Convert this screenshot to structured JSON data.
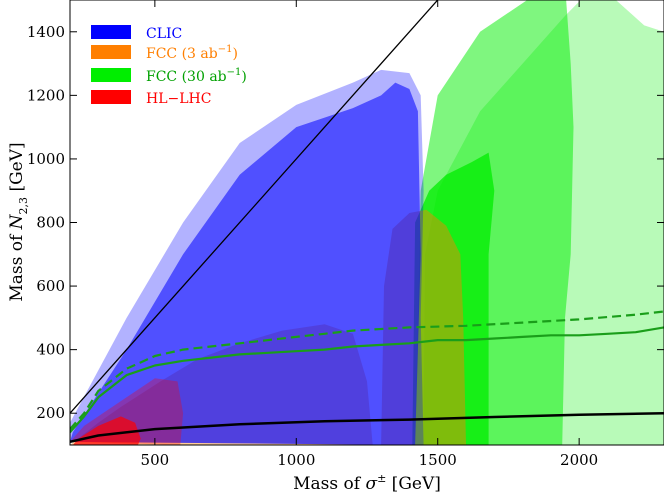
{
  "chart_data": {
    "type": "area",
    "xlabel": {
      "prefix": "Mass of ",
      "symbol": "σ",
      "sup": "±",
      "suffix": " [GeV]"
    },
    "ylabel": {
      "prefix": "Mass of ",
      "symbol": "N",
      "sub": "2,3",
      "suffix": " [GeV]"
    },
    "xlim": [
      200,
      2300
    ],
    "ylim": [
      100,
      1500
    ],
    "xticks": [
      500,
      1000,
      1500,
      2000
    ],
    "yticks": [
      200,
      400,
      600,
      800,
      1000,
      1200,
      1400
    ],
    "grid": false,
    "legend_position": "top-left",
    "legend": [
      {
        "label": "CLIC",
        "color": "#0000ff",
        "text_color": "#0000ff"
      },
      {
        "label": "FCC (3 ab",
        "sup": "−1",
        "close": ")",
        "color": "#ff7f00",
        "text_color": "#ff7f00"
      },
      {
        "label": "FCC (30 ab",
        "sup": "−1",
        "close": ")",
        "color": "#00ee00",
        "text_color": "#00a000"
      },
      {
        "label": "HL−LHC",
        "color": "#ff0000",
        "text_color": "#ff0000"
      }
    ],
    "regions": [
      {
        "name": "FCC (30 ab⁻¹)",
        "level": "outer",
        "color": "#00ee00",
        "opacity": 0.28,
        "points": [
          [
            1450,
            100
          ],
          [
            1455,
            700
          ],
          [
            1500,
            900
          ],
          [
            1650,
            1150
          ],
          [
            1800,
            1300
          ],
          [
            1950,
            1450
          ],
          [
            2050,
            1540
          ],
          [
            2130,
            1500
          ],
          [
            2230,
            1420
          ],
          [
            2300,
            1400
          ],
          [
            2300,
            100
          ]
        ]
      },
      {
        "name": "FCC (30 ab⁻¹)",
        "level": "inner",
        "color": "#00ee00",
        "opacity": 0.5,
        "points": [
          [
            1420,
            100
          ],
          [
            1440,
            900
          ],
          [
            1500,
            1200
          ],
          [
            1650,
            1400
          ],
          [
            1850,
            1520
          ],
          [
            1950,
            1550
          ],
          [
            1970,
            1300
          ],
          [
            1980,
            1100
          ],
          [
            1970,
            700
          ],
          [
            1950,
            500
          ],
          [
            1940,
            100
          ]
        ]
      },
      {
        "name": "FCC (30 ab⁻¹)",
        "level": "core",
        "color": "#00ee00",
        "opacity": 0.75,
        "points": [
          [
            1410,
            100
          ],
          [
            1420,
            800
          ],
          [
            1470,
            900
          ],
          [
            1530,
            950
          ],
          [
            1620,
            990
          ],
          [
            1680,
            1020
          ],
          [
            1700,
            900
          ],
          [
            1680,
            700
          ],
          [
            1680,
            100
          ]
        ]
      },
      {
        "name": "FCC (3 ab⁻¹)",
        "level": "outer",
        "color": "#ff7f00",
        "opacity": 0.4,
        "points": [
          [
            200,
            100
          ],
          [
            300,
            170
          ],
          [
            380,
            220
          ],
          [
            520,
            300
          ],
          [
            650,
            370
          ],
          [
            800,
            420
          ],
          [
            950,
            460
          ],
          [
            1100,
            480
          ],
          [
            1200,
            450
          ],
          [
            1250,
            300
          ],
          [
            1270,
            100
          ]
        ]
      },
      {
        "name": "FCC (3 ab⁻¹)",
        "level": "inner",
        "color": "#ff7f00",
        "opacity": 0.45,
        "points": [
          [
            1300,
            100
          ],
          [
            1310,
            600
          ],
          [
            1340,
            780
          ],
          [
            1400,
            830
          ],
          [
            1460,
            840
          ],
          [
            1530,
            790
          ],
          [
            1580,
            700
          ],
          [
            1590,
            500
          ],
          [
            1600,
            100
          ]
        ]
      },
      {
        "name": "CLIC",
        "level": "outer",
        "color": "#0000ff",
        "opacity": 0.3,
        "points": [
          [
            200,
            110
          ],
          [
            200,
            170
          ],
          [
            400,
            500
          ],
          [
            600,
            800
          ],
          [
            800,
            1050
          ],
          [
            1000,
            1170
          ],
          [
            1200,
            1240
          ],
          [
            1300,
            1280
          ],
          [
            1400,
            1270
          ],
          [
            1440,
            1200
          ],
          [
            1450,
            900
          ],
          [
            1440,
            500
          ],
          [
            1450,
            100
          ]
        ]
      },
      {
        "name": "CLIC",
        "level": "inner",
        "color": "#0000ff",
        "opacity": 0.55,
        "points": [
          [
            200,
            110
          ],
          [
            210,
            140
          ],
          [
            400,
            400
          ],
          [
            600,
            700
          ],
          [
            800,
            950
          ],
          [
            1000,
            1100
          ],
          [
            1200,
            1160
          ],
          [
            1300,
            1200
          ],
          [
            1350,
            1240
          ],
          [
            1400,
            1220
          ],
          [
            1430,
            1150
          ],
          [
            1440,
            700
          ],
          [
            1420,
            100
          ]
        ]
      },
      {
        "name": "HL−LHC",
        "level": "outer",
        "color": "#ff0000",
        "opacity": 0.3,
        "points": [
          [
            200,
            110
          ],
          [
            250,
            160
          ],
          [
            400,
            250
          ],
          [
            500,
            310
          ],
          [
            580,
            300
          ],
          [
            600,
            200
          ],
          [
            590,
            100
          ]
        ]
      },
      {
        "name": "HL−LHC",
        "level": "core",
        "color": "#ff0000",
        "opacity": 0.7,
        "points": [
          [
            210,
            100
          ],
          [
            230,
            120
          ],
          [
            300,
            160
          ],
          [
            380,
            190
          ],
          [
            430,
            170
          ],
          [
            450,
            120
          ],
          [
            440,
            100
          ]
        ]
      }
    ],
    "lines": [
      {
        "name": "diagonal",
        "color": "#000000",
        "width": 1.3,
        "dash": "",
        "points": [
          [
            200,
            200
          ],
          [
            1500,
            1500
          ]
        ]
      },
      {
        "name": "lower bound",
        "color": "#000000",
        "width": 2.5,
        "dash": "",
        "points": [
          [
            200,
            110
          ],
          [
            300,
            130
          ],
          [
            500,
            150
          ],
          [
            800,
            165
          ],
          [
            1100,
            175
          ],
          [
            1400,
            180
          ],
          [
            1700,
            188
          ],
          [
            2000,
            195
          ],
          [
            2300,
            200
          ]
        ]
      },
      {
        "name": "FCC 30 solid",
        "color": "#1a9e1a",
        "width": 2.2,
        "dash": "",
        "points": [
          [
            200,
            140
          ],
          [
            250,
            190
          ],
          [
            300,
            250
          ],
          [
            400,
            320
          ],
          [
            500,
            350
          ],
          [
            600,
            365
          ],
          [
            700,
            375
          ],
          [
            800,
            385
          ],
          [
            900,
            390
          ],
          [
            1000,
            395
          ],
          [
            1100,
            400
          ],
          [
            1200,
            410
          ],
          [
            1300,
            415
          ],
          [
            1400,
            420
          ],
          [
            1500,
            430
          ],
          [
            1600,
            430
          ],
          [
            1700,
            435
          ],
          [
            1800,
            440
          ],
          [
            1900,
            445
          ],
          [
            2000,
            445
          ],
          [
            2100,
            450
          ],
          [
            2200,
            455
          ],
          [
            2300,
            470
          ]
        ]
      },
      {
        "name": "FCC 3 dashed",
        "color": "#1a9e1a",
        "width": 2.2,
        "dash": "9,5",
        "points": [
          [
            200,
            150
          ],
          [
            250,
            200
          ],
          [
            300,
            270
          ],
          [
            400,
            340
          ],
          [
            500,
            380
          ],
          [
            600,
            400
          ],
          [
            800,
            420
          ],
          [
            1000,
            440
          ],
          [
            1200,
            460
          ],
          [
            1400,
            470
          ],
          [
            1600,
            475
          ],
          [
            1800,
            485
          ],
          [
            2000,
            495
          ],
          [
            2200,
            510
          ],
          [
            2300,
            520
          ]
        ]
      }
    ]
  }
}
